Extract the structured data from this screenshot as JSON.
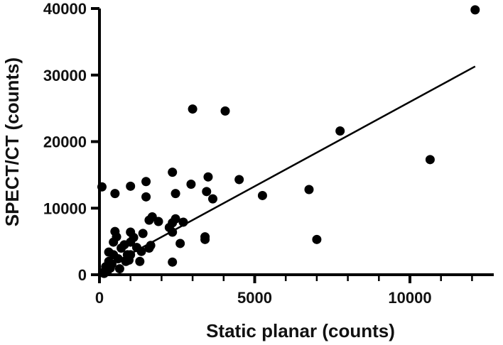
{
  "chart_data": {
    "type": "scatter",
    "xlabel": "Static planar (counts)",
    "ylabel": "SPECT/CT (counts)",
    "xlim": [
      0,
      12700
    ],
    "ylim": [
      0,
      40000
    ],
    "x_ticks": [
      0,
      5000,
      10000
    ],
    "x_tick_labels": [
      "0",
      "5000",
      "10000"
    ],
    "x_minor_step": 1000,
    "y_ticks": [
      0,
      10000,
      20000,
      30000,
      40000
    ],
    "y_tick_labels": [
      "0",
      "10000",
      "20000",
      "30000",
      "40000"
    ],
    "grid": false,
    "legend": "none",
    "marker_color": "#000000",
    "series": [
      {
        "points": [
          [
            12100,
            39800
          ],
          [
            7750,
            21600
          ],
          [
            10650,
            17300
          ],
          [
            6750,
            12800
          ],
          [
            7000,
            5300
          ],
          [
            5250,
            11900
          ],
          [
            4500,
            14300
          ],
          [
            4050,
            24600
          ],
          [
            3000,
            24900
          ],
          [
            3500,
            14700
          ],
          [
            3650,
            11400
          ],
          [
            3450,
            12500
          ],
          [
            3400,
            5700
          ],
          [
            3400,
            5300
          ],
          [
            2950,
            13600
          ],
          [
            2700,
            7900
          ],
          [
            2600,
            4700
          ],
          [
            2450,
            8400
          ],
          [
            2350,
            15400
          ],
          [
            2450,
            12200
          ],
          [
            2350,
            7800
          ],
          [
            2250,
            7100
          ],
          [
            2350,
            6400
          ],
          [
            2350,
            1900
          ],
          [
            1900,
            8000
          ],
          [
            1700,
            8700
          ],
          [
            1600,
            8200
          ],
          [
            1500,
            14000
          ],
          [
            1500,
            11700
          ],
          [
            1650,
            4400
          ],
          [
            1600,
            4000
          ],
          [
            1400,
            6200
          ],
          [
            1350,
            3500
          ],
          [
            1300,
            2000
          ],
          [
            1200,
            4100
          ],
          [
            1100,
            5600
          ],
          [
            1000,
            6400
          ],
          [
            1000,
            13300
          ],
          [
            1000,
            4900
          ],
          [
            1000,
            3000
          ],
          [
            900,
            3000
          ],
          [
            850,
            2000
          ],
          [
            800,
            4500
          ],
          [
            650,
            900
          ],
          [
            600,
            2400
          ],
          [
            550,
            5700
          ],
          [
            500,
            6500
          ],
          [
            500,
            12200
          ],
          [
            450,
            4900
          ],
          [
            450,
            3000
          ],
          [
            400,
            1600
          ],
          [
            350,
            1000
          ],
          [
            300,
            3400
          ],
          [
            300,
            2000
          ],
          [
            250,
            500
          ],
          [
            200,
            1200
          ],
          [
            150,
            200
          ],
          [
            80,
            13200
          ],
          [
            100,
            300
          ],
          [
            700,
            4000
          ],
          [
            950,
            2200
          ]
        ]
      }
    ],
    "fit_line": {
      "x": [
        0,
        12100
      ],
      "y": [
        600,
        31300
      ]
    }
  }
}
